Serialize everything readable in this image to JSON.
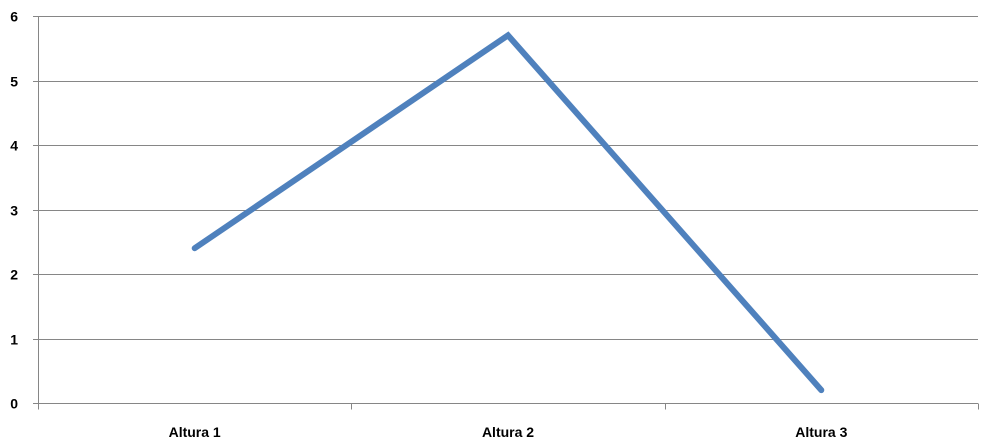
{
  "chart_data": {
    "type": "line",
    "title": "",
    "xlabel": "",
    "ylabel": "",
    "categories": [
      "Altura 1",
      "Altura 2",
      "Altura 3"
    ],
    "series": [
      {
        "values": [
          2.4,
          5.7,
          0.2
        ],
        "color": "#4f81bd"
      }
    ],
    "ylim": [
      0,
      6
    ],
    "yticks": [
      "0",
      "1",
      "2",
      "3",
      "4",
      "5",
      "6"
    ],
    "grid": true,
    "legend": "none",
    "colors": {
      "gridline": "#868686",
      "axis": "#868686",
      "text": "#000000"
    }
  }
}
